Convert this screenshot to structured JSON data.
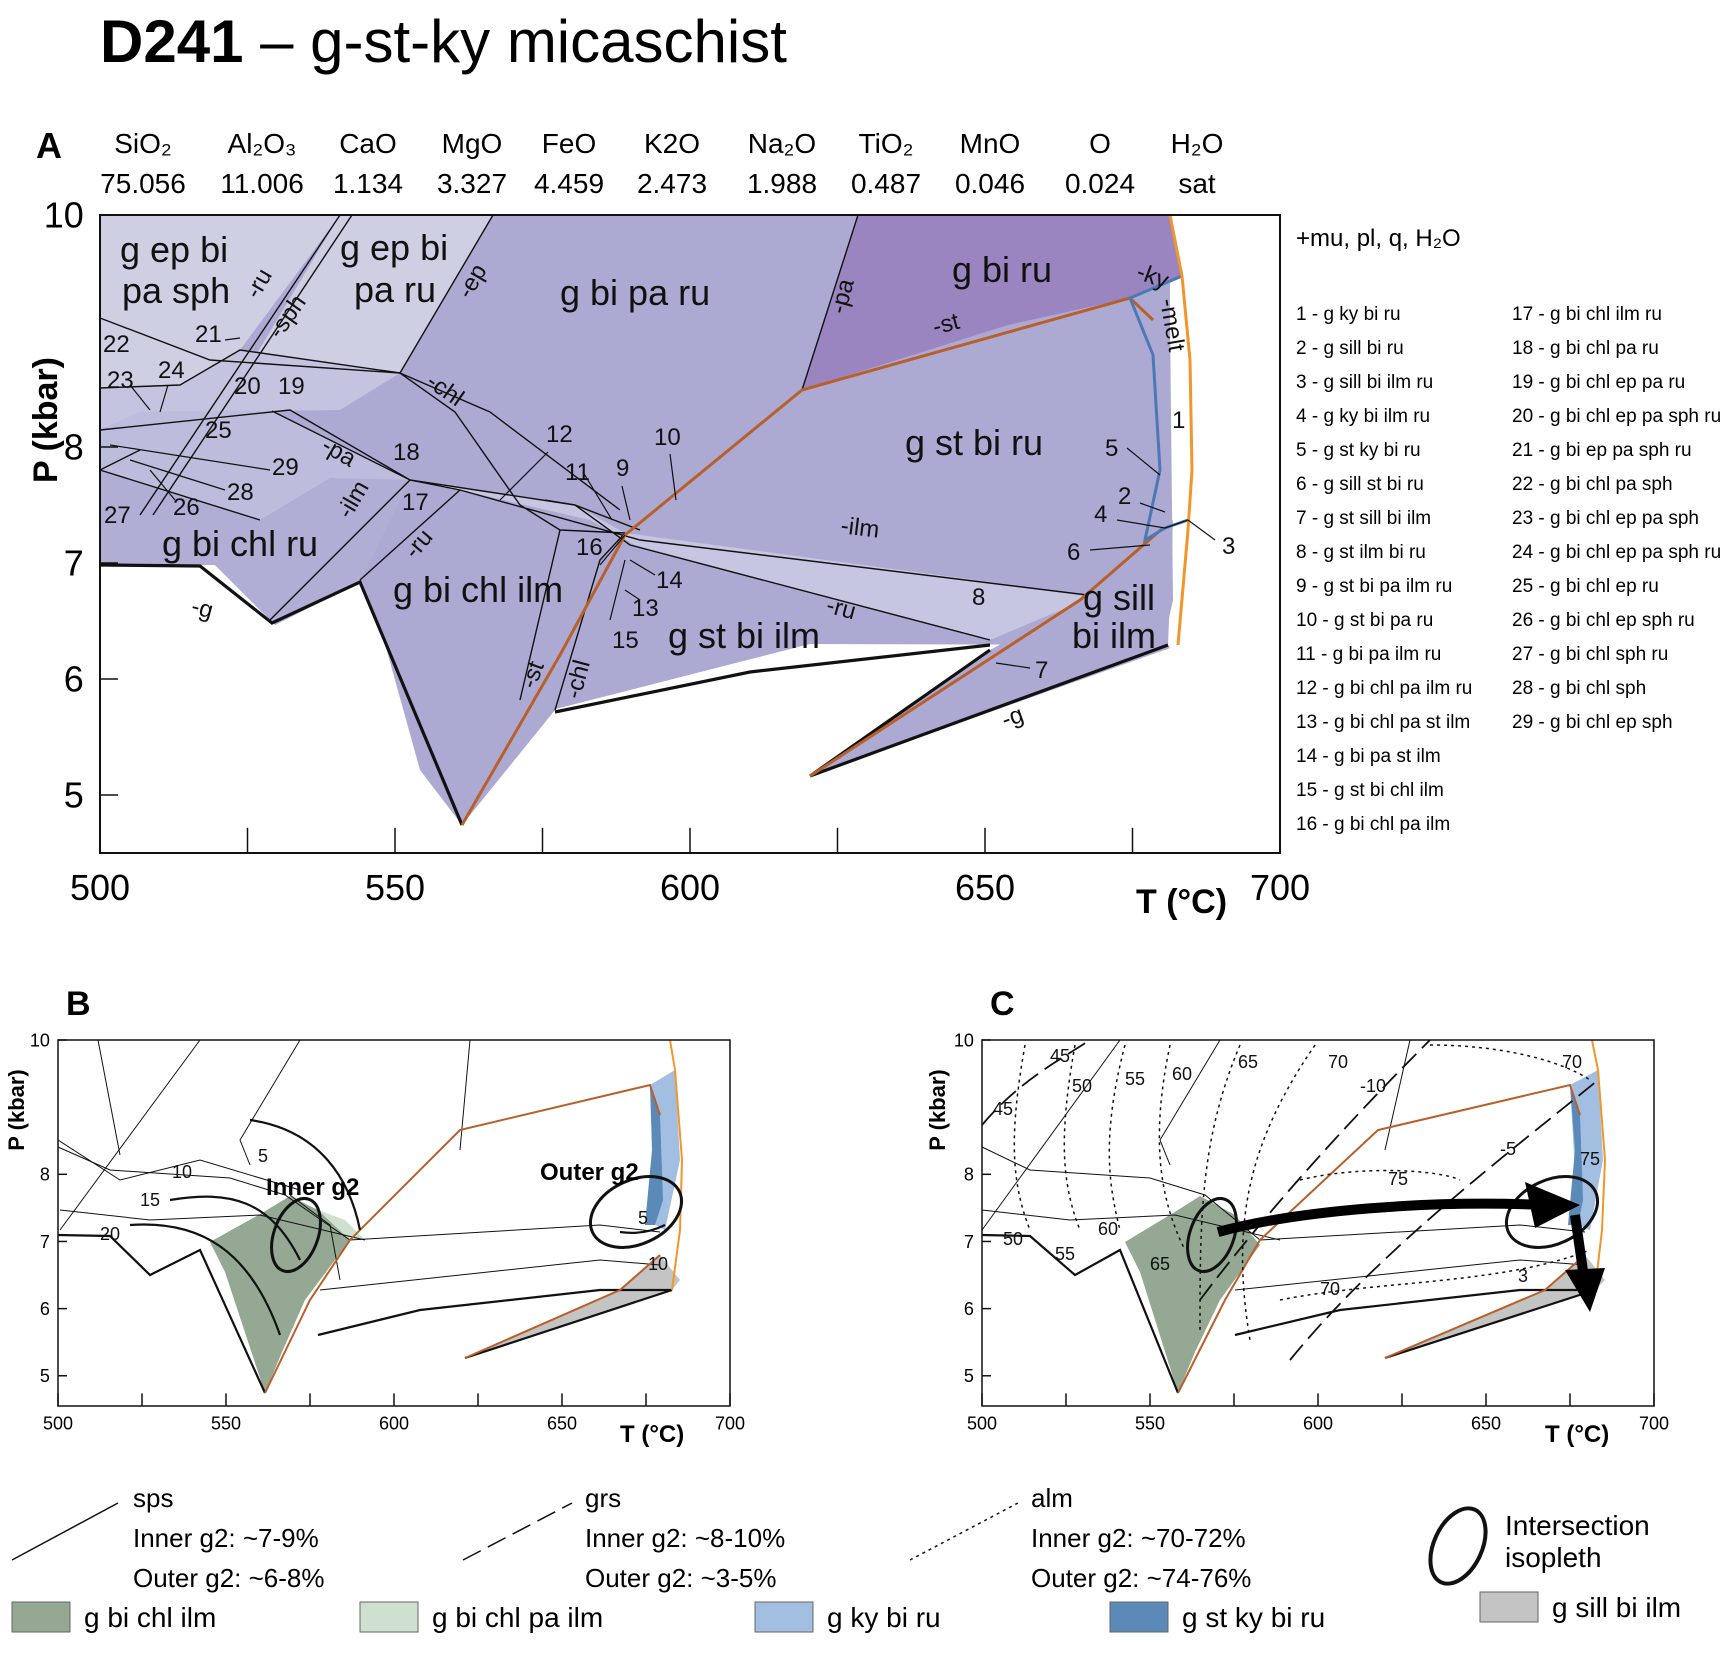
{
  "title": {
    "sample": "D241",
    "rest": " – g-st-ky micaschist"
  },
  "panel_a": {
    "letter": "A",
    "composition_headers": [
      "SiO₂",
      "Al₂O₃",
      "CaO",
      "MgO",
      "FeO",
      "K2O",
      "Na₂O",
      "TiO₂",
      "MnO",
      "O",
      "H₂O"
    ],
    "composition_values": [
      "75.056",
      "11.006",
      "1.134",
      "3.327",
      "4.459",
      "2.473",
      "1.988",
      "0.487",
      "0.046",
      "0.024",
      "sat"
    ],
    "ylabel": "P (kbar)",
    "xlabel": "T (°C)",
    "x_ticks": [
      "500",
      "550",
      "600",
      "650",
      "700"
    ],
    "y_ticks": [
      "10",
      "8",
      "7",
      "6",
      "5"
    ],
    "assemblage_note": "+mu, pl, q, H₂O",
    "field_labels": {
      "gepbipasph": [
        "g ep bi",
        "pa sph"
      ],
      "gepbiparu": [
        "g ep bi",
        "pa ru"
      ],
      "gbiparu": "g bi pa ru",
      "gbiru": "g bi ru",
      "gstbiru": "g st bi ru",
      "gbichlru": "g bi chl ru",
      "gbichlilm": "g bi chl ilm",
      "gstbiilm": "g st bi ilm",
      "gsillbiilm": [
        "g sill",
        "bi ilm"
      ]
    },
    "reaction_labels": [
      "-ru",
      "-sph",
      "-ep",
      "-chl",
      "-pa",
      "-st",
      "-ky",
      "-melt",
      "-pa",
      "-ilm",
      "-ru",
      "-ilm",
      "-ru",
      "-st",
      "-chl",
      "-g",
      "-g"
    ],
    "small_numbers": [
      "1",
      "2",
      "3",
      "4",
      "5",
      "6",
      "7",
      "8",
      "9",
      "10",
      "11",
      "12",
      "13",
      "14",
      "15",
      "16",
      "17",
      "18",
      "19",
      "20",
      "21",
      "22",
      "23",
      "24",
      "25",
      "26",
      "27",
      "28",
      "29"
    ],
    "legend_col1": [
      "1 - g ky bi ru",
      "2 - g sill bi ru",
      "3 - g sill bi ilm ru",
      "4 - g ky bi ilm ru",
      "5 - g st ky bi ru",
      "6 - g sill st bi ru",
      "7 - g st sill bi ilm",
      "8 - g st ilm bi ru",
      "9 - g st bi pa ilm ru",
      "10 - g st bi pa ru",
      "11 - g bi pa ilm ru",
      "12 - g bi chl pa ilm ru",
      "13 - g bi chl pa st ilm",
      "14 - g bi pa st ilm",
      "15 - g st bi chl ilm",
      "16 - g bi chl pa ilm"
    ],
    "legend_col2": [
      "17 - g bi chl ilm ru",
      "18 - g bi chl pa ru",
      "19 - g bi chl ep pa ru",
      "20 - g bi chl ep pa sph ru",
      "21 - g bi ep pa sph ru",
      "22 - g bi chl pa sph",
      "23 - g bi chl ep pa sph",
      "24 - g bi chl ep pa sph ru",
      "25 - g bi chl ep ru",
      "26 - g bi chl ep sph ru",
      "27 - g bi chl sph ru",
      "28 - g bi chl sph",
      "29 - g bi chl ep sph"
    ]
  },
  "panel_b": {
    "letter": "B",
    "ylabel": "P (kbar)",
    "xlabel": "T (°C)",
    "x_ticks": [
      "500",
      "550",
      "600",
      "650",
      "700"
    ],
    "y_ticks": [
      "10",
      "8",
      "7",
      "6",
      "5"
    ],
    "isopleth_labels": [
      "5",
      "10",
      "15",
      "20",
      "5",
      "10"
    ],
    "ellipse_labels": [
      "Inner g2",
      "Outer g2"
    ]
  },
  "panel_c": {
    "letter": "C",
    "ylabel": "P (kbar)",
    "xlabel": "T (°C)",
    "x_ticks": [
      "500",
      "550",
      "600",
      "650",
      "700"
    ],
    "y_ticks": [
      "10",
      "8",
      "7",
      "6",
      "5"
    ],
    "isopleth_labels": [
      "45",
      "45",
      "50",
      "55",
      "60",
      "65",
      "70",
      "70",
      "-10",
      "-5",
      "75",
      "75",
      "50",
      "55",
      "60",
      "65",
      "70",
      "3"
    ]
  },
  "legend": {
    "sps": {
      "name": "sps",
      "inner": "Inner g2: ~7-9%",
      "outer": "Outer g2: ~6-8%"
    },
    "grs": {
      "name": "grs",
      "inner": "Inner g2: ~8-10%",
      "outer": "Outer g2: ~3-5%"
    },
    "alm": {
      "name": "alm",
      "inner": "Inner g2: ~70-72%",
      "outer": "Outer g2: ~74-76%"
    },
    "intersection": [
      "Intersection",
      "isopleth"
    ],
    "swatches": [
      {
        "label": "g bi chl ilm",
        "color": "#94a893"
      },
      {
        "label": "g bi chl pa ilm",
        "color": "#cfe0d1"
      },
      {
        "label": "g ky bi ru",
        "color": "#a2bfe2"
      },
      {
        "label": "g st ky bi ru",
        "color": "#5b89b8"
      },
      {
        "label": "g sill bi ilm",
        "color": "#c4c4c4"
      }
    ]
  },
  "colors": {
    "field_light": "#cfcfe4",
    "field_mid": "#b9b9da",
    "field_main": "#acaad3",
    "field_dark": "#9a85c0",
    "st_line": "#b85f2a",
    "boundary_orange": "#f0962a",
    "ky_blue": "#4d78b6"
  }
}
